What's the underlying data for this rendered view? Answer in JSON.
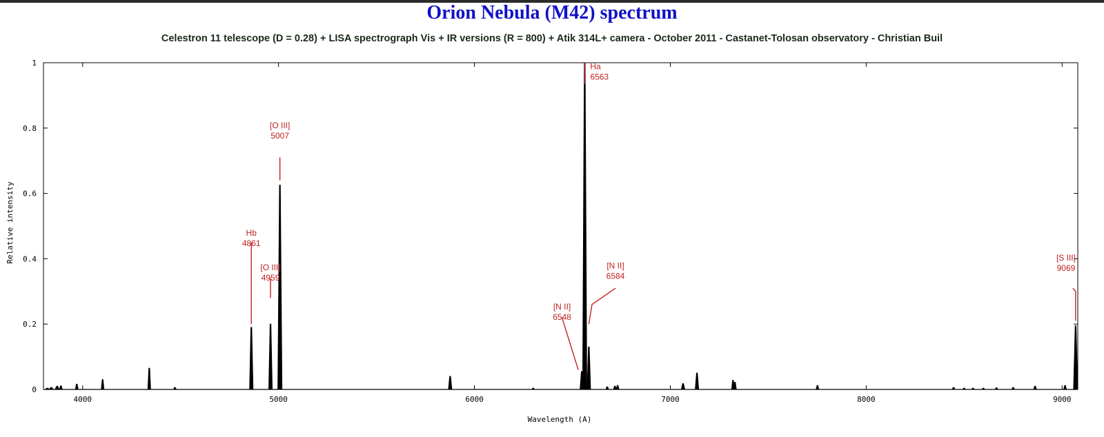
{
  "chart_data": {
    "type": "line",
    "title": "Orion Nebula (M42) spectrum",
    "subtitle": "Celestron 11 telescope (D = 0.28) + LISA spectrograph Vis + IR versions (R = 800) + Atik 314L+ camera - October 2011 - Castanet-Tolosan observatory - Christian Buil",
    "xlabel": "Wavelength (A)",
    "ylabel": "Relative intensity",
    "xlim": [
      3800,
      9080
    ],
    "ylim": [
      0,
      1
    ],
    "xticks": [
      4000,
      5000,
      6000,
      7000,
      8000,
      9000
    ],
    "yticks": [
      0,
      0.2,
      0.4,
      0.6,
      0.8,
      1
    ],
    "ytick_labels": [
      "0",
      "0.2",
      "0.4",
      "0.6",
      "0.8",
      "1"
    ],
    "grid": false,
    "line_color": "#000000",
    "annotation_color": "#c02020",
    "lines": [
      {
        "x": 3820,
        "y": 0.004,
        "w": 6
      },
      {
        "x": 3840,
        "y": 0.006,
        "w": 6
      },
      {
        "x": 3870,
        "y": 0.01,
        "w": 6
      },
      {
        "x": 3889,
        "y": 0.011,
        "w": 4
      },
      {
        "x": 3970,
        "y": 0.016,
        "w": 4
      },
      {
        "x": 4102,
        "y": 0.03,
        "w": 4
      },
      {
        "x": 4340,
        "y": 0.065,
        "w": 4
      },
      {
        "x": 4471,
        "y": 0.006,
        "w": 4
      },
      {
        "x": 4861,
        "y": 0.19,
        "w": 5
      },
      {
        "x": 4959,
        "y": 0.2,
        "w": 5
      },
      {
        "x": 5007,
        "y": 0.625,
        "w": 6
      },
      {
        "x": 5876,
        "y": 0.04,
        "w": 5
      },
      {
        "x": 6300,
        "y": 0.004,
        "w": 4
      },
      {
        "x": 6548,
        "y": 0.055,
        "w": 5
      },
      {
        "x": 6563,
        "y": 1.0,
        "w": 6
      },
      {
        "x": 6584,
        "y": 0.13,
        "w": 5
      },
      {
        "x": 6678,
        "y": 0.008,
        "w": 4
      },
      {
        "x": 6717,
        "y": 0.01,
        "w": 4
      },
      {
        "x": 6731,
        "y": 0.012,
        "w": 4
      },
      {
        "x": 7065,
        "y": 0.018,
        "w": 5
      },
      {
        "x": 7136,
        "y": 0.05,
        "w": 5
      },
      {
        "x": 7320,
        "y": 0.028,
        "w": 4
      },
      {
        "x": 7330,
        "y": 0.022,
        "w": 4
      },
      {
        "x": 7751,
        "y": 0.012,
        "w": 4
      },
      {
        "x": 8446,
        "y": 0.006,
        "w": 4
      },
      {
        "x": 8500,
        "y": 0.004,
        "w": 4
      },
      {
        "x": 8545,
        "y": 0.004,
        "w": 4
      },
      {
        "x": 8598,
        "y": 0.004,
        "w": 4
      },
      {
        "x": 8665,
        "y": 0.005,
        "w": 4
      },
      {
        "x": 8750,
        "y": 0.006,
        "w": 4
      },
      {
        "x": 8862,
        "y": 0.01,
        "w": 4
      },
      {
        "x": 9015,
        "y": 0.012,
        "w": 4
      },
      {
        "x": 9069,
        "y": 0.195,
        "w": 6
      }
    ],
    "annotations": [
      {
        "name": "Hb",
        "text": [
          "Hb",
          "4861"
        ],
        "line": [
          [
            4861,
            0.2
          ],
          [
            4861,
            0.45
          ]
        ]
      },
      {
        "name": "oiii-4959",
        "text": [
          "[O III]",
          "4959"
        ],
        "line": [
          [
            4959,
            0.28
          ],
          [
            4959,
            0.34
          ]
        ]
      },
      {
        "name": "oiii-5007",
        "text": [
          "[O III]",
          "5007"
        ],
        "line": [
          [
            5007,
            0.64
          ],
          [
            5007,
            0.71
          ]
        ]
      },
      {
        "name": "ha",
        "text": [
          "Ha",
          "6563"
        ],
        "line": [
          [
            6563,
            0.935
          ],
          [
            6563,
            1.0
          ]
        ]
      },
      {
        "name": "nii-6548",
        "text": [
          "[N II]",
          "6548"
        ],
        "line": [
          [
            6530,
            0.06
          ],
          [
            6447,
            0.22
          ]
        ]
      },
      {
        "name": "nii-6584",
        "text": [
          "[N II]",
          "6584"
        ],
        "line": [
          [
            6584,
            0.2
          ],
          [
            6600,
            0.26
          ],
          [
            6720,
            0.31
          ]
        ]
      },
      {
        "name": "siii",
        "text": [
          "[S III]",
          "9069"
        ],
        "line": [
          [
            9069,
            0.21
          ],
          [
            9069,
            0.3
          ],
          [
            9055,
            0.31
          ]
        ]
      }
    ]
  }
}
